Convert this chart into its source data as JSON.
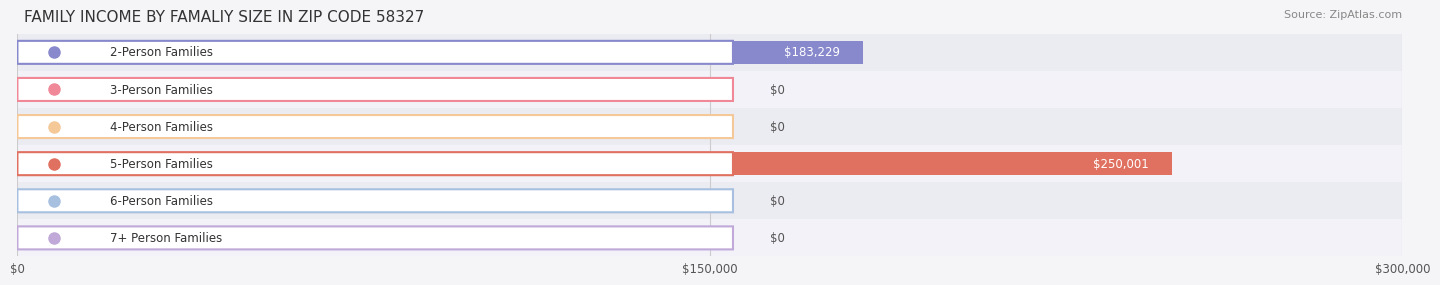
{
  "title": "FAMILY INCOME BY FAMALIY SIZE IN ZIP CODE 58327",
  "source": "Source: ZipAtlas.com",
  "categories": [
    "2-Person Families",
    "3-Person Families",
    "4-Person Families",
    "5-Person Families",
    "6-Person Families",
    "7+ Person Families"
  ],
  "values": [
    183229,
    0,
    0,
    250001,
    0,
    0
  ],
  "bar_colors": [
    "#8888cc",
    "#f08898",
    "#f5c897",
    "#e07060",
    "#a8c0e0",
    "#c0a8d8"
  ],
  "label_colors": [
    "#ffffff",
    "#555555",
    "#555555",
    "#ffffff",
    "#555555",
    "#555555"
  ],
  "label_bg_colors": [
    "#8888cc",
    "#f08898",
    "#f5c897",
    "#e07060",
    "#a8c0e0",
    "#c0a8d8"
  ],
  "xlim": [
    0,
    300000
  ],
  "xticks": [
    0,
    150000,
    300000
  ],
  "xtick_labels": [
    "$0",
    "$150,000",
    "$300,000"
  ],
  "value_labels": [
    "$183,229",
    "$0",
    "$0",
    "$250,001",
    "$0",
    "$0"
  ],
  "bar_height": 0.62,
  "background_color": "#f0f0f5",
  "row_bg_colors": [
    "#e8e8f0",
    "#f0f0f8"
  ],
  "title_fontsize": 11,
  "label_fontsize": 8.5,
  "value_fontsize": 8.5,
  "tick_fontsize": 8.5
}
